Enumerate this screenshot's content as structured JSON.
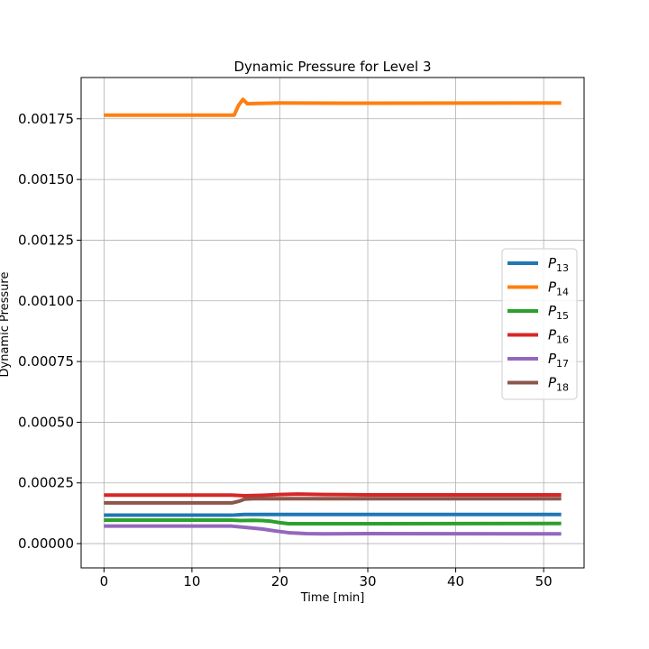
{
  "chart_data": {
    "type": "line",
    "title": "Dynamic Pressure for Level 3",
    "xlabel": "Time [min]",
    "ylabel": "Dynamic Pressure",
    "xlim": [
      -2.6,
      54.6
    ],
    "ylim": [
      -0.0001,
      0.00192
    ],
    "xticks": [
      0,
      10,
      20,
      30,
      40,
      50
    ],
    "yticks": [
      0.0,
      0.00025,
      0.0005,
      0.00075,
      0.001,
      0.00125,
      0.0015,
      0.00175
    ],
    "ytick_labels": [
      "0.00000",
      "0.00025",
      "0.00050",
      "0.00075",
      "0.00100",
      "0.00125",
      "0.00150",
      "0.00175"
    ],
    "grid": true,
    "legend_position": "center-right",
    "series": [
      {
        "name": "P13",
        "label_main": "P",
        "label_sub": "13",
        "color": "#1f77b4",
        "x": [
          0,
          14.5,
          15.5,
          16,
          52
        ],
        "y": [
          0.000117,
          0.000117,
          0.000119,
          0.00012,
          0.00012
        ]
      },
      {
        "name": "P14",
        "label_main": "P",
        "label_sub": "14",
        "color": "#ff7f0e",
        "x": [
          0,
          14.8,
          15.3,
          15.8,
          16.3,
          17,
          20,
          30,
          52
        ],
        "y": [
          0.001765,
          0.001765,
          0.001805,
          0.00183,
          0.001812,
          0.001813,
          0.001815,
          0.001814,
          0.001815
        ]
      },
      {
        "name": "P15",
        "label_main": "P",
        "label_sub": "15",
        "color": "#2ca02c",
        "x": [
          0,
          14.5,
          15.5,
          17,
          18,
          19,
          20,
          21,
          23,
          30,
          52
        ],
        "y": [
          9.7e-05,
          9.7e-05,
          9.5e-05,
          9.6e-05,
          9.5e-05,
          9.2e-05,
          8.6e-05,
          8.2e-05,
          8.2e-05,
          8.2e-05,
          8.3e-05
        ]
      },
      {
        "name": "P16",
        "label_main": "P",
        "label_sub": "16",
        "color": "#d62728",
        "x": [
          0,
          14.5,
          16,
          18,
          20,
          22,
          25,
          30,
          52
        ],
        "y": [
          0.0002,
          0.0002,
          0.000197,
          0.000199,
          0.000202,
          0.000204,
          0.000202,
          0.000201,
          0.000201
        ]
      },
      {
        "name": "P17",
        "label_main": "P",
        "label_sub": "17",
        "color": "#9467bd",
        "x": [
          0,
          14.5,
          16,
          18,
          19.5,
          21,
          23,
          25,
          30,
          52
        ],
        "y": [
          7.2e-05,
          7.2e-05,
          6.7e-05,
          6e-05,
          5.2e-05,
          4.5e-05,
          4.1e-05,
          4e-05,
          4.1e-05,
          4e-05
        ]
      },
      {
        "name": "P18",
        "label_main": "P",
        "label_sub": "18",
        "color": "#8c564b",
        "x": [
          0,
          14.6,
          15.3,
          16,
          17,
          20,
          52
        ],
        "y": [
          0.000168,
          0.000168,
          0.000174,
          0.000183,
          0.000185,
          0.000185,
          0.000185
        ]
      }
    ]
  }
}
